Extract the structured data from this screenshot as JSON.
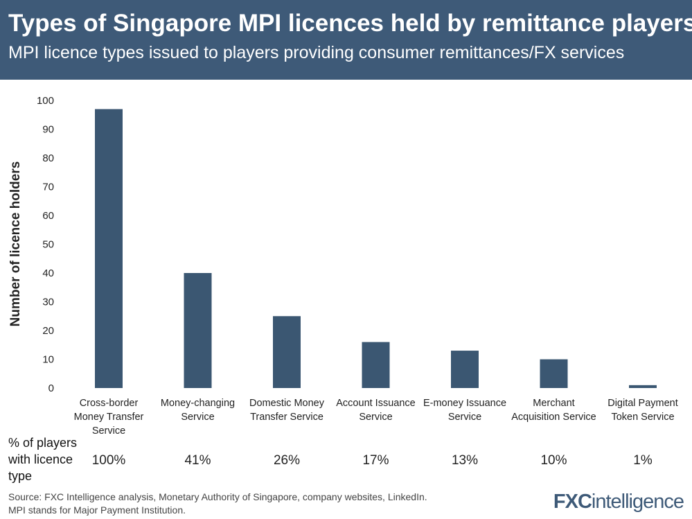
{
  "header": {
    "title": "Types of Singapore MPI licences held by remittance players",
    "subtitle": "MPI licence types issued to players providing consumer remittances/FX services"
  },
  "chart_data": {
    "type": "bar",
    "title": "Types of Singapore MPI licences held by remittance players",
    "subtitle": "MPI licence types issued to players providing consumer remittances/FX services",
    "ylabel": "Number of licence holders",
    "xlabel": "",
    "ylim": [
      0,
      100
    ],
    "yticks": [
      0,
      10,
      20,
      30,
      40,
      50,
      60,
      70,
      80,
      90,
      100
    ],
    "grid": false,
    "bar_color": "#3b5772",
    "categories": [
      [
        "Cross-border",
        "Money Transfer",
        "Service"
      ],
      [
        "Money-changing",
        "Service"
      ],
      [
        "Domestic Money",
        "Transfer Service"
      ],
      [
        "Account Issuance",
        "Service"
      ],
      [
        "E-money Issuance",
        "Service"
      ],
      [
        "Merchant",
        "Acquisition Service"
      ],
      [
        "Digital Payment",
        "Token Service"
      ]
    ],
    "values": [
      97,
      40,
      25,
      16,
      13,
      10,
      1
    ]
  },
  "percent_row": {
    "label": [
      "% of players",
      "with licence",
      "type"
    ],
    "values": [
      "100%",
      "41%",
      "26%",
      "17%",
      "13%",
      "10%",
      "1%"
    ]
  },
  "footer": {
    "source": "Source: FXC Intelligence analysis, Monetary Authority of Singapore, company websites, LinkedIn.",
    "note": "MPI stands for Major Payment Institution.",
    "logo": "FXCintelligence"
  }
}
